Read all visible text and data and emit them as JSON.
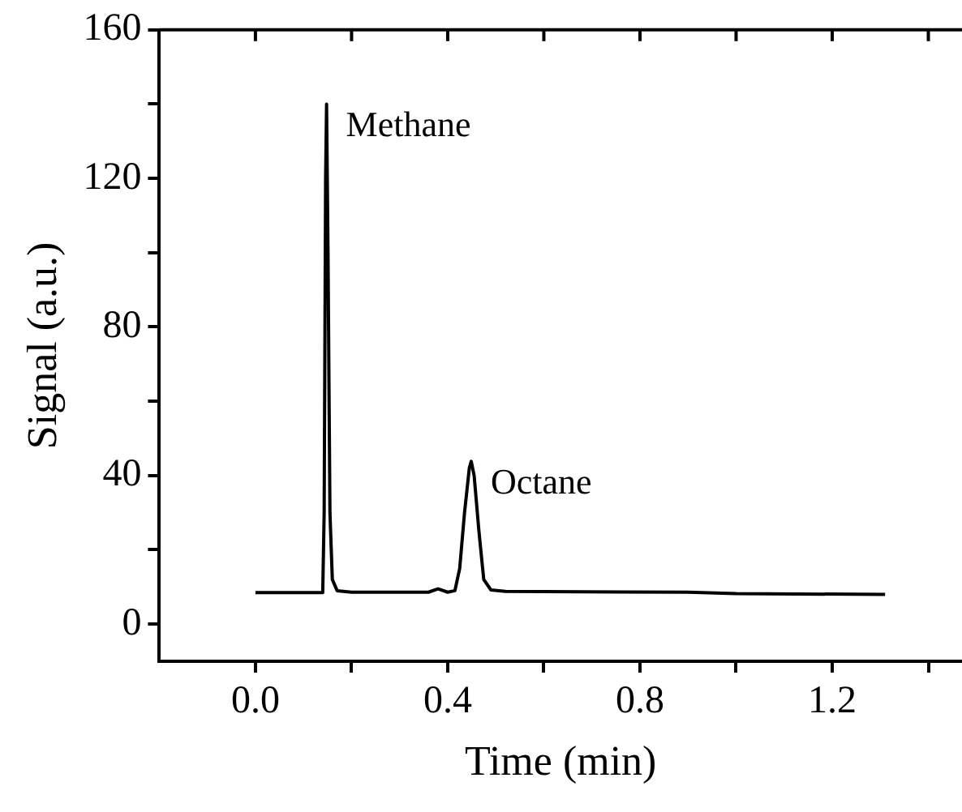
{
  "chart_data": {
    "type": "line",
    "xlabel": "Time (min)",
    "ylabel": "Signal (a.u.)",
    "x": [
      0,
      0.14,
      0.143,
      0.146,
      0.148,
      0.151,
      0.155,
      0.16,
      0.17,
      0.2,
      0.36,
      0.38,
      0.4,
      0.415,
      0.425,
      0.435,
      0.445,
      0.449,
      0.455,
      0.465,
      0.475,
      0.49,
      0.52,
      0.9,
      1.0,
      1.31
    ],
    "series": [
      {
        "color": "#000000",
        "values": [
          8.5,
          8.5,
          30,
          120,
          140,
          100,
          30,
          12,
          9,
          8.6,
          8.6,
          9.5,
          8.6,
          9,
          15,
          30,
          42,
          43.8,
          40,
          25,
          12,
          9.2,
          8.8,
          8.6,
          8.2,
          8
        ]
      }
    ],
    "annotations": [
      "Methane",
      "Octane"
    ],
    "xlim": [
      -0.2,
      1.47
    ],
    "xticks": [
      {
        "value": 0,
        "label": "0.0"
      },
      {
        "value": 0.2,
        "label": null
      },
      {
        "value": 0.4,
        "label": "0.4"
      },
      {
        "value": 0.6,
        "label": null
      },
      {
        "value": 0.8,
        "label": "0.8"
      },
      {
        "value": 1.0,
        "label": null
      },
      {
        "value": 1.2,
        "label": "1.2"
      },
      {
        "value": 1.4,
        "label": null
      }
    ],
    "ylim": [
      -10,
      160
    ],
    "yticks": [
      0,
      {
        "value": 20,
        "label": null
      },
      40,
      {
        "value": 60,
        "label": null
      },
      80,
      {
        "value": 100,
        "label": null
      },
      120,
      {
        "value": 140,
        "label": null
      },
      160
    ],
    "grid": false,
    "legend": false,
    "marker": "none",
    "line_style": "solid"
  }
}
